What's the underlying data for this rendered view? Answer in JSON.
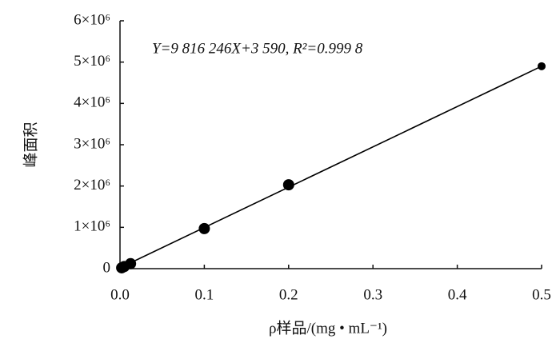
{
  "chart_data": {
    "type": "scatter",
    "annotation": "Y=9 816 246X+3 590, R²=0.999 8",
    "xlabel": "ρ样品/(mg • mL⁻¹)",
    "ylabel": "峰面积",
    "series": [
      {
        "color": "#000000",
        "x": [
          0.002,
          0.005,
          0.0125,
          0.1,
          0.2,
          0.5
        ],
        "values": [
          20000,
          50000,
          120000,
          970000,
          2030000,
          4900000
        ]
      }
    ],
    "xlim": [
      0,
      0.5
    ],
    "ylim": [
      0,
      6000000
    ],
    "xticks": [
      {
        "value": 0,
        "label": "0.0"
      },
      0.1,
      0.2,
      0.3,
      0.4,
      0.5
    ],
    "yticks": [
      0,
      {
        "value": 1000000,
        "label": "1×10⁶"
      },
      {
        "value": 2000000,
        "label": "2×10⁶"
      },
      {
        "value": 3000000,
        "label": "3×10⁶"
      },
      {
        "value": 4000000,
        "label": "4×10⁶"
      },
      {
        "value": 5000000,
        "label": "5×10⁶"
      },
      {
        "value": 6000000,
        "label": "6×10⁶"
      }
    ],
    "grid": false
  }
}
